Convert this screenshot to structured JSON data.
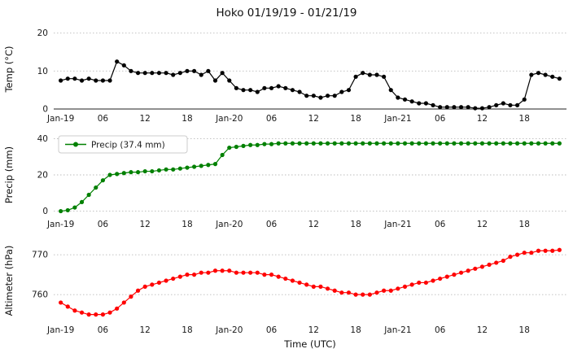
{
  "title": "Hoko 01/19/19 - 01/21/19",
  "xlabel": "Time (UTC)",
  "chart_data": {
    "type": "line",
    "x_unit": "hours since Jan-19 00:00 UTC",
    "xlim": [
      -1,
      72
    ],
    "x_ticks": [
      {
        "pos": 0,
        "label": "Jan-19"
      },
      {
        "pos": 6,
        "label": "06"
      },
      {
        "pos": 12,
        "label": "12"
      },
      {
        "pos": 18,
        "label": "18"
      },
      {
        "pos": 24,
        "label": "Jan-20"
      },
      {
        "pos": 30,
        "label": "06"
      },
      {
        "pos": 36,
        "label": "12"
      },
      {
        "pos": 42,
        "label": "18"
      },
      {
        "pos": 48,
        "label": "Jan-21"
      },
      {
        "pos": 54,
        "label": "06"
      },
      {
        "pos": 60,
        "label": "12"
      },
      {
        "pos": 66,
        "label": "18"
      }
    ],
    "subplots": [
      {
        "name": "temp",
        "ylabel": "Temp (°C)",
        "color": "#000000",
        "ylim": [
          0,
          21
        ],
        "yticks": [
          0,
          10,
          20
        ],
        "bottom_spine": true,
        "legend": null,
        "values": [
          7.5,
          8,
          8,
          7.5,
          8,
          7.5,
          7.5,
          7.5,
          12.5,
          11.5,
          10,
          9.5,
          9.5,
          9.5,
          9.5,
          9.5,
          9,
          9.5,
          10,
          10,
          9,
          10,
          7.5,
          9.5,
          7.5,
          5.5,
          5,
          5,
          4.5,
          5.5,
          5.5,
          6,
          5.5,
          5,
          4.5,
          3.5,
          3.5,
          3,
          3.5,
          3.5,
          4.5,
          5,
          8.5,
          9.5,
          9,
          9,
          8.5,
          5,
          3,
          2.5,
          2,
          1.5,
          1.5,
          1,
          0.5,
          0.5,
          0.5,
          0.5,
          0.5,
          0.2,
          0.2,
          0.5,
          1,
          1.5,
          1,
          1,
          2.5,
          9,
          9.5,
          9,
          8.5,
          8
        ]
      },
      {
        "name": "precip",
        "ylabel": "Precip (mm)",
        "color": "#008000",
        "ylim": [
          -2,
          42
        ],
        "yticks": [
          0,
          20,
          40
        ],
        "bottom_spine": false,
        "legend": "Precip (37.4 mm)",
        "values": [
          0,
          0.5,
          2,
          5,
          9,
          13,
          17,
          20,
          20.5,
          21,
          21.5,
          21.5,
          22,
          22,
          22.5,
          23,
          23,
          23.5,
          24,
          24.5,
          25,
          25.5,
          26,
          31,
          35,
          35.5,
          36,
          36.5,
          36.5,
          37,
          37,
          37.4,
          37.4,
          37.4,
          37.4,
          37.4,
          37.4,
          37.4,
          37.4,
          37.4,
          37.4,
          37.4,
          37.4,
          37.4,
          37.4,
          37.4,
          37.4,
          37.4,
          37.4,
          37.4,
          37.4,
          37.4,
          37.4,
          37.4,
          37.4,
          37.4,
          37.4,
          37.4,
          37.4,
          37.4,
          37.4,
          37.4,
          37.4,
          37.4,
          37.4,
          37.4,
          37.4,
          37.4,
          37.4,
          37.4,
          37.4,
          37.4
        ]
      },
      {
        "name": "altimeter",
        "ylabel": "Altimeter (hPa)",
        "color": "#ff0000",
        "ylim": [
          753.5,
          773.5
        ],
        "yticks": [
          760,
          770
        ],
        "bottom_spine": false,
        "legend": null,
        "values": [
          758,
          757,
          756,
          755.5,
          755,
          755,
          755,
          755.5,
          756.5,
          758,
          759.5,
          761,
          762,
          762.5,
          763,
          763.5,
          764,
          764.5,
          765,
          765,
          765.5,
          765.5,
          766,
          766,
          766,
          765.5,
          765.5,
          765.5,
          765.5,
          765,
          765,
          764.5,
          764,
          763.5,
          763,
          762.5,
          762,
          762,
          761.5,
          761,
          760.5,
          760.5,
          760,
          760,
          760,
          760.5,
          761,
          761,
          761.5,
          762,
          762.5,
          763,
          763,
          763.5,
          764,
          764.5,
          765,
          765.5,
          766,
          766.5,
          767,
          767.5,
          768,
          768.5,
          769.5,
          770,
          770.5,
          770.5,
          771,
          771,
          771,
          771.2
        ]
      }
    ]
  }
}
